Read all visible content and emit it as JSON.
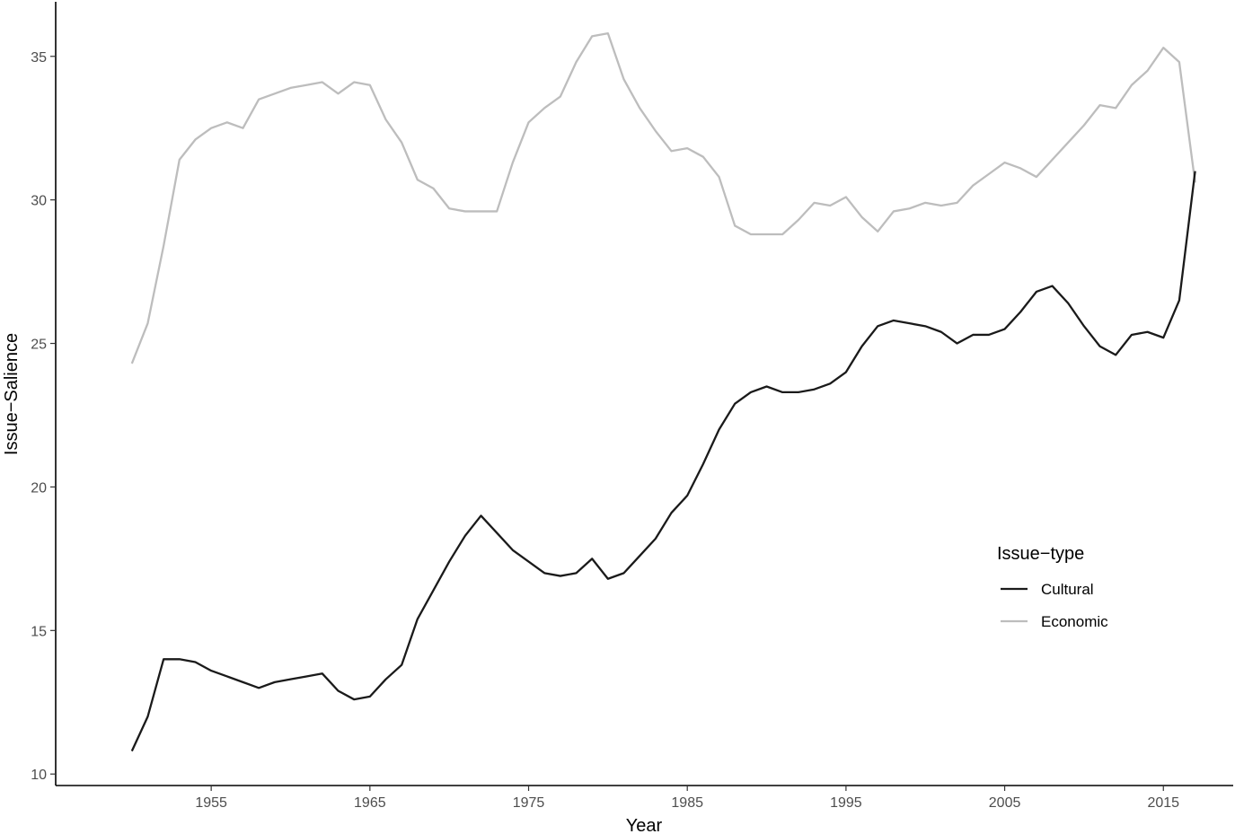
{
  "chart_data": {
    "type": "line",
    "title": "",
    "xlabel": "Year",
    "ylabel": "Issue−Salience",
    "xlim": [
      1945.2,
      2019.4
    ],
    "ylim": [
      9.6,
      36.9
    ],
    "xticks": [
      1955,
      1965,
      1975,
      1985,
      1995,
      2005,
      2015
    ],
    "yticks": [
      10,
      15,
      20,
      25,
      30,
      35
    ],
    "grid": false,
    "legend": {
      "title": "Issue−type",
      "position": "right",
      "entries": [
        "Cultural",
        "Economic"
      ]
    },
    "x": [
      1950,
      1951,
      1952,
      1953,
      1954,
      1955,
      1956,
      1957,
      1958,
      1959,
      1960,
      1961,
      1962,
      1963,
      1964,
      1965,
      1966,
      1967,
      1968,
      1969,
      1970,
      1971,
      1972,
      1973,
      1974,
      1975,
      1976,
      1977,
      1978,
      1979,
      1980,
      1981,
      1982,
      1983,
      1984,
      1985,
      1986,
      1987,
      1988,
      1989,
      1990,
      1991,
      1992,
      1993,
      1994,
      1995,
      1996,
      1997,
      1998,
      1999,
      2000,
      2001,
      2002,
      2003,
      2004,
      2005,
      2006,
      2007,
      2008,
      2009,
      2010,
      2011,
      2012,
      2013,
      2014,
      2015,
      2016,
      2017
    ],
    "series": [
      {
        "name": "Cultural",
        "color": "#1a1a1a",
        "values": [
          10.8,
          12.0,
          14.0,
          14.0,
          13.9,
          13.6,
          13.4,
          13.2,
          13.0,
          13.2,
          13.3,
          13.4,
          13.5,
          12.9,
          12.6,
          12.7,
          13.3,
          13.8,
          15.4,
          16.4,
          17.4,
          18.3,
          19.0,
          18.4,
          17.8,
          17.4,
          17.0,
          16.9,
          17.0,
          17.5,
          16.8,
          17.0,
          17.6,
          18.2,
          19.1,
          19.7,
          20.8,
          22.0,
          22.9,
          23.3,
          23.5,
          23.3,
          23.3,
          23.4,
          23.6,
          24.0,
          24.9,
          25.6,
          25.8,
          25.7,
          25.6,
          25.4,
          25.0,
          25.3,
          25.3,
          25.5,
          26.1,
          26.8,
          27.0,
          26.4,
          25.6,
          24.9,
          24.6,
          25.3,
          25.4,
          25.2,
          26.5,
          31.0
        ]
      },
      {
        "name": "Economic",
        "color": "#bdbdbd",
        "values": [
          24.3,
          25.7,
          28.4,
          31.4,
          32.1,
          32.5,
          32.7,
          32.5,
          33.5,
          33.7,
          33.9,
          34.0,
          34.1,
          33.7,
          34.1,
          34.0,
          32.8,
          32.0,
          30.7,
          30.4,
          29.7,
          29.6,
          29.6,
          29.6,
          31.3,
          32.7,
          33.2,
          33.6,
          34.8,
          35.7,
          35.8,
          34.2,
          33.2,
          32.4,
          31.7,
          31.8,
          31.5,
          30.8,
          29.1,
          28.8,
          28.8,
          28.8,
          29.3,
          29.9,
          29.8,
          30.1,
          29.4,
          28.9,
          29.6,
          29.7,
          29.9,
          29.8,
          29.9,
          30.5,
          30.9,
          31.3,
          31.1,
          30.8,
          31.4,
          32.0,
          32.6,
          33.3,
          33.2,
          34.0,
          34.5,
          35.3,
          34.8,
          30.6
        ]
      }
    ]
  }
}
